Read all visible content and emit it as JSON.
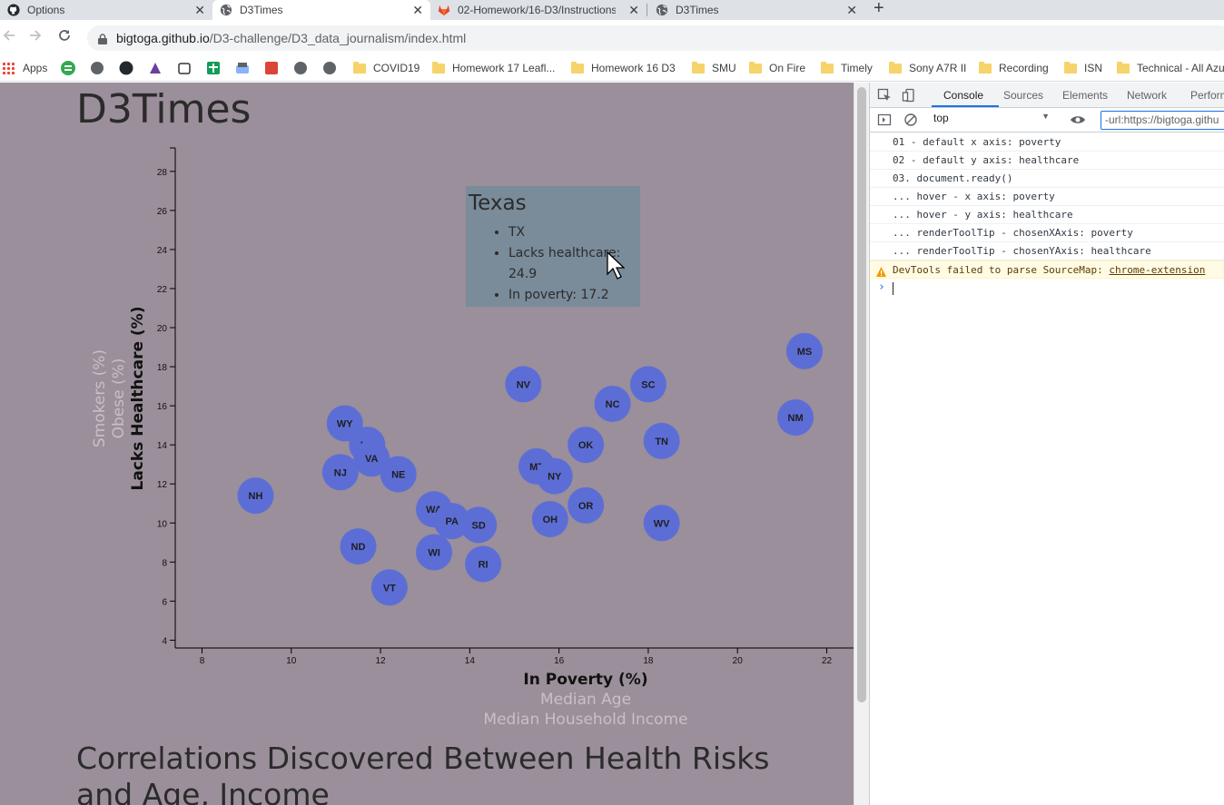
{
  "tabs": [
    {
      "title": "Options",
      "icon": "github-icon",
      "active": false
    },
    {
      "title": "D3Times",
      "icon": "globe-icon",
      "active": true
    },
    {
      "title": "02-Homework/16-D3/Instructions",
      "icon": "gitlab-icon",
      "active": false
    },
    {
      "title": "D3Times",
      "icon": "globe-icon",
      "active": false
    }
  ],
  "url": {
    "host": "bigtoga.github.io",
    "path": "/D3-challenge/D3_data_journalism/index.html"
  },
  "bookmarks": {
    "apps_label": "Apps",
    "folders": [
      "COVID19",
      "Homework 17 Leafl...",
      "Homework 16 D3",
      "SMU",
      "On Fire",
      "Timely",
      "Sony A7R II",
      "Recording",
      "ISN",
      "Technical - All Azu"
    ]
  },
  "page": {
    "title": "D3Times",
    "heading": "Correlations Discovered Between Health Risks and Age, Income",
    "tooltip": {
      "state": "Texas",
      "items": [
        "TX",
        "Lacks healthcare: 24.9",
        "In poverty: 17.2"
      ]
    }
  },
  "chart_data": {
    "type": "scatter",
    "title": "",
    "x_axis_labels": [
      {
        "text": "In Poverty (%)",
        "active": true
      },
      {
        "text": "Median Age",
        "active": false
      },
      {
        "text": "Median Household Income",
        "active": false
      }
    ],
    "y_axis_labels": [
      {
        "text": "Lacks Healthcare (%)",
        "active": true
      },
      {
        "text": "Obese (%)",
        "active": false
      },
      {
        "text": "Smokers (%)",
        "active": false
      }
    ],
    "xlabel": "In Poverty (%)",
    "ylabel": "Lacks Healthcare (%)",
    "xlim": [
      7.4,
      22.6
    ],
    "ylim": [
      3.6,
      29.2
    ],
    "xticks": [
      8,
      10,
      12,
      14,
      16,
      18,
      20,
      22
    ],
    "yticks": [
      4,
      6,
      8,
      10,
      12,
      14,
      16,
      18,
      20,
      22,
      24,
      26,
      28
    ],
    "points": [
      {
        "abbr": "NH",
        "x": 9.2,
        "y": 11.4
      },
      {
        "abbr": "WY",
        "x": 11.2,
        "y": 15.1
      },
      {
        "abbr": "UT",
        "x": 11.7,
        "y": 14.0
      },
      {
        "abbr": "VA",
        "x": 11.8,
        "y": 13.3
      },
      {
        "abbr": "NJ",
        "x": 11.1,
        "y": 12.6
      },
      {
        "abbr": "NE",
        "x": 12.4,
        "y": 12.5
      },
      {
        "abbr": "ND",
        "x": 11.5,
        "y": 8.8
      },
      {
        "abbr": "VT",
        "x": 12.2,
        "y": 6.7
      },
      {
        "abbr": "WA",
        "x": 13.2,
        "y": 10.7
      },
      {
        "abbr": "PA",
        "x": 13.6,
        "y": 10.1
      },
      {
        "abbr": "SD",
        "x": 14.2,
        "y": 9.9
      },
      {
        "abbr": "WI",
        "x": 13.2,
        "y": 8.5
      },
      {
        "abbr": "RI",
        "x": 14.3,
        "y": 7.9
      },
      {
        "abbr": "NV",
        "x": 15.2,
        "y": 17.1
      },
      {
        "abbr": "MT",
        "x": 15.5,
        "y": 12.9
      },
      {
        "abbr": "NY",
        "x": 15.9,
        "y": 12.4
      },
      {
        "abbr": "OH",
        "x": 15.8,
        "y": 10.2
      },
      {
        "abbr": "OK",
        "x": 16.6,
        "y": 14.0
      },
      {
        "abbr": "OR",
        "x": 16.6,
        "y": 10.9
      },
      {
        "abbr": "NC",
        "x": 17.2,
        "y": 16.1
      },
      {
        "abbr": "SC",
        "x": 18.0,
        "y": 17.1
      },
      {
        "abbr": "TN",
        "x": 18.3,
        "y": 14.2
      },
      {
        "abbr": "WV",
        "x": 18.3,
        "y": 10.0
      },
      {
        "abbr": "NM",
        "x": 21.3,
        "y": 15.4
      },
      {
        "abbr": "MS",
        "x": 21.5,
        "y": 18.8
      }
    ],
    "colors": {
      "point": "#5c6ed6",
      "point_text": "#1e1e1e",
      "inactive_label": "#c8c0c8",
      "active_label": "#111111"
    }
  },
  "devtools": {
    "tabs": [
      "Console",
      "Sources",
      "Elements",
      "Network",
      "Perform"
    ],
    "active_tab": "Console",
    "context": "top",
    "filter": "-url:https://bigtoga.githu",
    "lines": [
      "01 - default x axis: poverty",
      "02 - default y axis: healthcare",
      "03. document.ready()",
      "... hover - x axis: poverty",
      "... hover - y axis: healthcare",
      "... renderToolTip - chosenXAxis: poverty",
      "... renderToolTip - chosenYAxis: healthcare"
    ],
    "warning": {
      "text": "DevTools failed to parse SourceMap: ",
      "link": "chrome-extension"
    }
  }
}
